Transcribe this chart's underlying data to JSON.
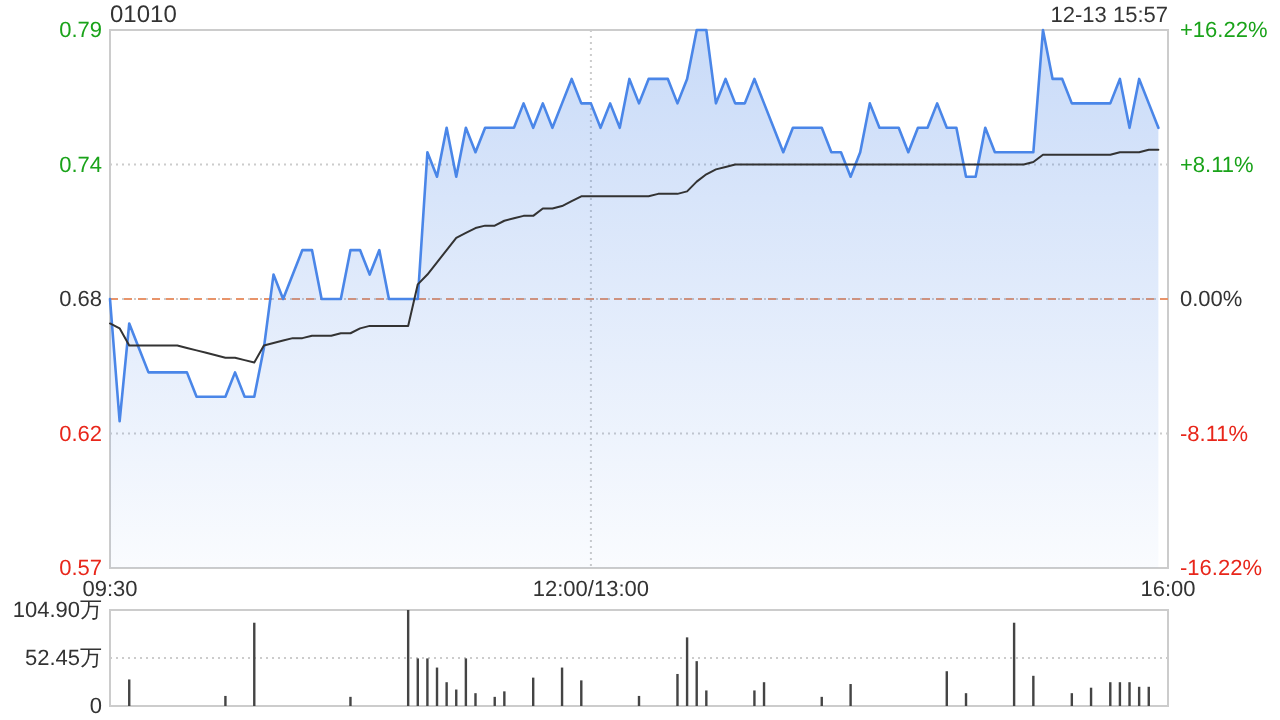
{
  "chart_data": [
    {
      "type": "line",
      "title": "01010",
      "subtitle": "12-13 15:57",
      "categories": [
        "09:30",
        null,
        null,
        null,
        null,
        null,
        null,
        null,
        null,
        null,
        null,
        null,
        null,
        null,
        null,
        null,
        null,
        null,
        null,
        null,
        null,
        null,
        null,
        null,
        null,
        null,
        null,
        null,
        null,
        null,
        null,
        null,
        null,
        null,
        null,
        null,
        null,
        null,
        null,
        null,
        null,
        null,
        null,
        null,
        null,
        null,
        null,
        null,
        null,
        null,
        "12:00/13:00",
        null,
        null,
        null,
        null,
        null,
        null,
        null,
        null,
        null,
        null,
        null,
        null,
        null,
        null,
        null,
        null,
        null,
        null,
        null,
        null,
        null,
        null,
        null,
        null,
        null,
        null,
        null,
        null,
        null,
        null,
        null,
        null,
        null,
        null,
        null,
        null,
        null,
        null,
        null,
        null,
        null,
        null,
        null,
        null,
        null,
        null,
        null,
        null,
        null,
        null,
        null,
        null,
        null,
        null,
        null,
        null,
        null,
        null,
        null,
        "16:00"
      ],
      "ylim": [
        0.57,
        0.79
      ],
      "yticks": [
        0.57,
        {
          "value": 0.625,
          "label": "0.62"
        },
        0.68,
        {
          "value": 0.735,
          "label": "0.74"
        },
        0.79
      ],
      "y2lim": [
        -16.22,
        16.22
      ],
      "y2ticks": [
        {
          "value": -16.22,
          "label": "-16.22%"
        },
        {
          "value": -8.11,
          "label": "-8.11%"
        },
        {
          "value": 0,
          "label": "0.00%"
        },
        {
          "value": 8.11,
          "label": "+8.11%"
        },
        {
          "value": 16.22,
          "label": "+16.22%"
        }
      ],
      "grid": true,
      "ref_lines": [
        {
          "axis": "y",
          "value": 0.68,
          "color": "#e8946a",
          "line_style": "dashed"
        }
      ],
      "series": [
        {
          "type": "area",
          "color": "#4a86e8",
          "values": [
            0.68,
            0.63,
            0.67,
            0.66,
            0.65,
            0.65,
            0.65,
            0.65,
            0.65,
            0.64,
            0.64,
            0.64,
            0.64,
            0.65,
            0.64,
            0.64,
            0.66,
            0.69,
            0.68,
            0.69,
            0.7,
            0.7,
            0.68,
            0.68,
            0.68,
            0.7,
            0.7,
            0.69,
            0.7,
            0.68,
            0.68,
            0.68,
            0.68,
            0.74,
            0.73,
            0.75,
            0.73,
            0.75,
            0.74,
            0.75,
            0.75,
            0.75,
            0.75,
            0.76,
            0.75,
            0.76,
            0.75,
            0.76,
            0.77,
            0.76,
            0.76,
            0.75,
            0.76,
            0.75,
            0.77,
            0.76,
            0.77,
            0.77,
            0.77,
            0.76,
            0.77,
            0.79,
            0.79,
            0.76,
            0.77,
            0.76,
            0.76,
            0.77,
            0.76,
            0.75,
            0.74,
            0.75,
            0.75,
            0.75,
            0.75,
            0.74,
            0.74,
            0.73,
            0.74,
            0.76,
            0.75,
            0.75,
            0.75,
            0.74,
            0.75,
            0.75,
            0.76,
            0.75,
            0.75,
            0.73,
            0.73,
            0.75,
            0.74,
            0.74,
            0.74,
            0.74,
            0.74,
            0.79,
            0.77,
            0.77,
            0.76,
            0.76,
            0.76,
            0.76,
            0.76,
            0.77,
            0.75,
            0.77,
            0.76,
            0.75,
            null
          ]
        },
        {
          "color": "#333333",
          "values": [
            0.67,
            0.668,
            0.661,
            0.661,
            0.661,
            0.661,
            0.661,
            0.661,
            0.66,
            0.659,
            0.658,
            0.657,
            0.656,
            0.656,
            0.655,
            0.654,
            0.661,
            0.662,
            0.663,
            0.664,
            0.664,
            0.665,
            0.665,
            0.665,
            0.666,
            0.666,
            0.668,
            0.669,
            0.669,
            0.669,
            0.669,
            0.669,
            0.686,
            0.69,
            0.695,
            0.7,
            0.705,
            0.707,
            0.709,
            0.71,
            0.71,
            0.712,
            0.713,
            0.714,
            0.714,
            0.717,
            0.717,
            0.718,
            0.72,
            0.722,
            0.722,
            0.722,
            0.722,
            0.722,
            0.722,
            0.722,
            0.722,
            0.723,
            0.723,
            0.723,
            0.724,
            0.728,
            0.731,
            0.733,
            0.734,
            0.735,
            0.735,
            0.735,
            0.735,
            0.735,
            0.735,
            0.735,
            0.735,
            0.735,
            0.735,
            0.735,
            0.735,
            0.735,
            0.735,
            0.735,
            0.735,
            0.735,
            0.735,
            0.735,
            0.735,
            0.735,
            0.735,
            0.735,
            0.735,
            0.735,
            0.735,
            0.735,
            0.735,
            0.735,
            0.735,
            0.735,
            0.736,
            0.739,
            0.739,
            0.739,
            0.739,
            0.739,
            0.739,
            0.739,
            0.739,
            0.74,
            0.74,
            0.74,
            0.741,
            0.741,
            null
          ]
        }
      ]
    },
    {
      "type": "bar",
      "tick_labels": "y",
      "grid": "y",
      "categories": [
        null,
        null,
        null,
        null,
        null,
        null,
        null,
        null,
        null,
        null,
        null,
        null,
        null,
        null,
        null,
        null,
        null,
        null,
        null,
        null,
        null,
        null,
        null,
        null,
        null,
        null,
        null,
        null,
        null,
        null,
        null,
        null,
        null,
        null,
        null,
        null,
        null,
        null,
        null,
        null,
        null,
        null,
        null,
        null,
        null,
        null,
        null,
        null,
        null,
        null,
        null,
        null,
        null,
        null,
        null,
        null,
        null,
        null,
        null,
        null,
        null,
        null,
        null,
        null,
        null,
        null,
        null,
        null,
        null,
        null,
        null,
        null,
        null,
        null,
        null,
        null,
        null,
        null,
        null,
        null,
        null,
        null,
        null,
        null,
        null,
        null,
        null,
        null,
        null,
        null,
        null,
        null,
        null,
        null,
        null,
        null,
        null,
        null,
        null,
        null,
        null,
        null,
        null,
        null,
        null,
        null,
        null,
        null,
        null,
        null,
        null
      ],
      "ylim": [
        0,
        104.9
      ],
      "yticks": [
        0,
        {
          "value": 52.45,
          "label": "52.45万"
        },
        {
          "value": 104.9,
          "label": "104.90万"
        }
      ],
      "series": [
        {
          "color": "#444444",
          "values": [
            null,
            null,
            29,
            null,
            null,
            null,
            null,
            null,
            null,
            null,
            null,
            null,
            11,
            null,
            null,
            91,
            null,
            null,
            null,
            null,
            null,
            null,
            null,
            null,
            null,
            10,
            null,
            null,
            null,
            null,
            null,
            104.9,
            52,
            52,
            42,
            26,
            18,
            52,
            14,
            null,
            10,
            16,
            null,
            null,
            31,
            null,
            null,
            42,
            null,
            28,
            null,
            null,
            null,
            null,
            null,
            11,
            null,
            null,
            null,
            35,
            75,
            49,
            17,
            null,
            null,
            null,
            null,
            17,
            26,
            null,
            null,
            null,
            null,
            null,
            10,
            null,
            null,
            24,
            null,
            null,
            null,
            null,
            null,
            null,
            null,
            null,
            null,
            38,
            null,
            14,
            null,
            null,
            null,
            null,
            91,
            null,
            33,
            null,
            null,
            null,
            14,
            null,
            20,
            null,
            26,
            26,
            26,
            21,
            21,
            null,
            null
          ]
        }
      ]
    }
  ]
}
